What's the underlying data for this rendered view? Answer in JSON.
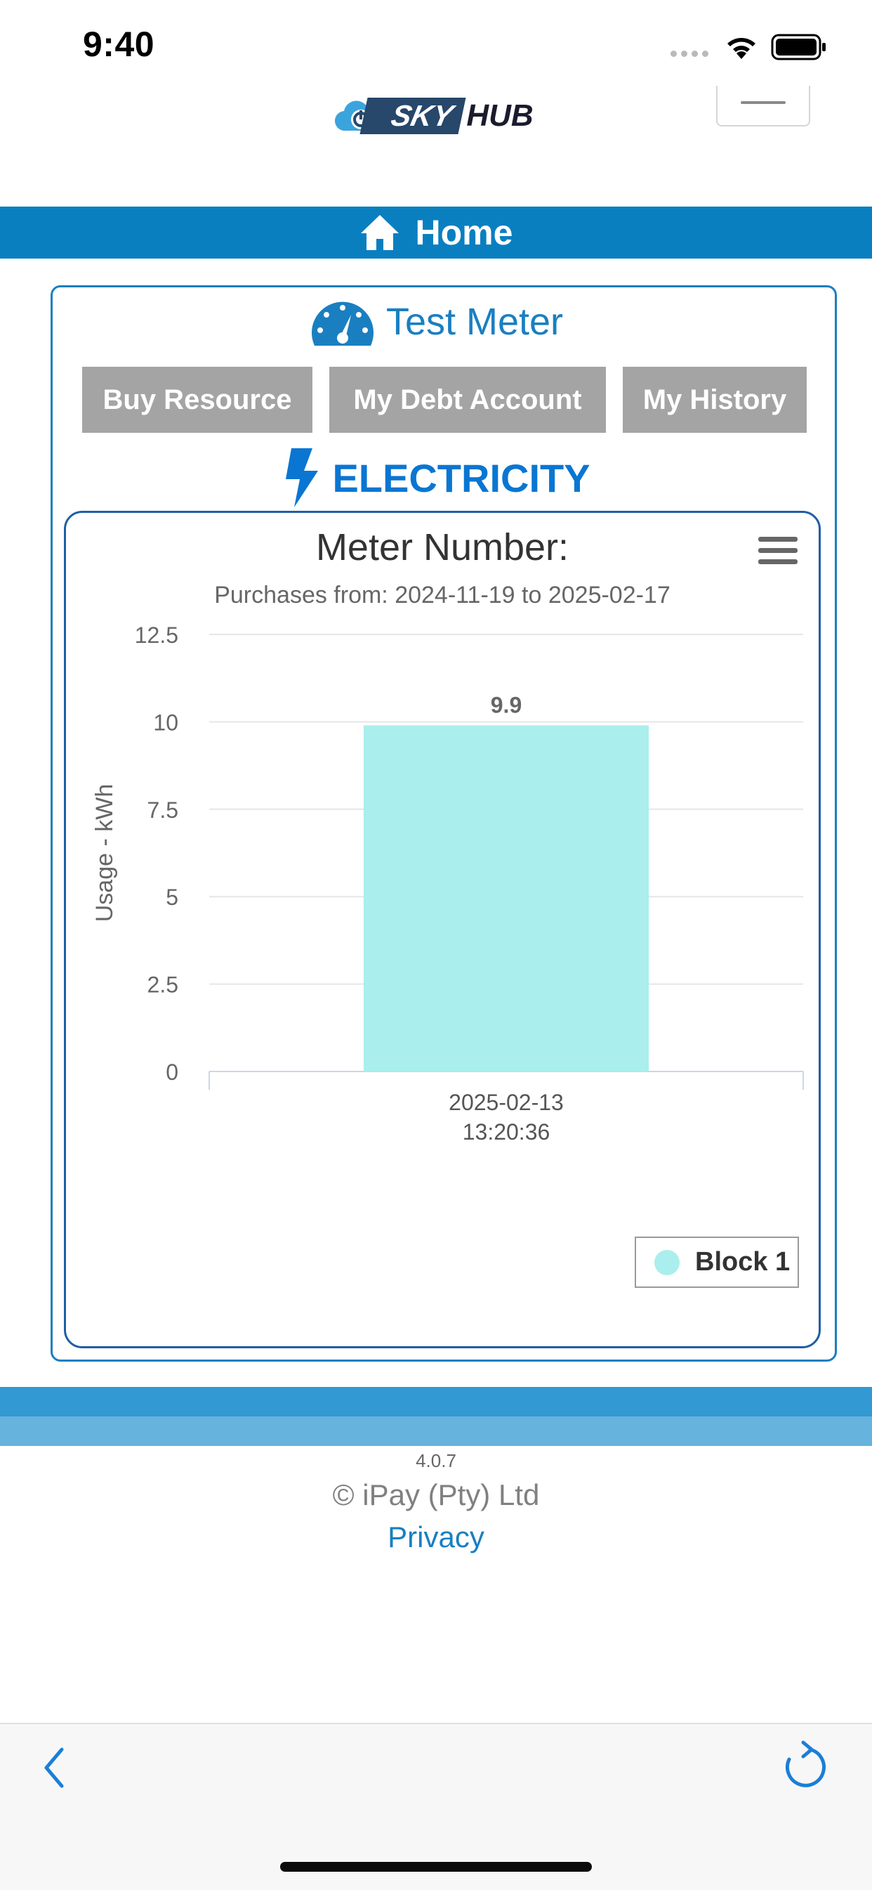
{
  "status_bar": {
    "time": "9:40"
  },
  "header": {
    "logo_sky": "SKY",
    "logo_hub": "HUB",
    "nav_title": "Home"
  },
  "meter": {
    "name": "Test Meter",
    "buttons": [
      "Buy Resource",
      "My Debt Account",
      "My History"
    ],
    "resource": "ELECTRICITY"
  },
  "colors": {
    "primary": "#0a7fc0",
    "button_gray": "#a4a4a4",
    "bar_fill": "#aaeeed"
  },
  "chart_data": {
    "type": "bar",
    "title": "Meter Number:",
    "subtitle": "Purchases from: 2024-11-19 to 2025-02-17",
    "ylabel": "Usage - kWh",
    "ylim": [
      0,
      12.5
    ],
    "yticks": [
      "0",
      "2.5",
      "5",
      "7.5",
      "10",
      "12.5"
    ],
    "categories": [
      "2025-02-13 13:20:36"
    ],
    "category_lines": [
      [
        "2025-02-13",
        "13:20:36"
      ]
    ],
    "series": [
      {
        "name": "Block 1",
        "values": [
          9.9
        ],
        "labels": [
          "9.9"
        ],
        "color": "#aaeeed"
      }
    ],
    "grid": true,
    "legend": "bottom-right"
  },
  "footer": {
    "version": "4.0.7",
    "copyright": "© iPay (Pty) Ltd",
    "privacy": "Privacy"
  }
}
